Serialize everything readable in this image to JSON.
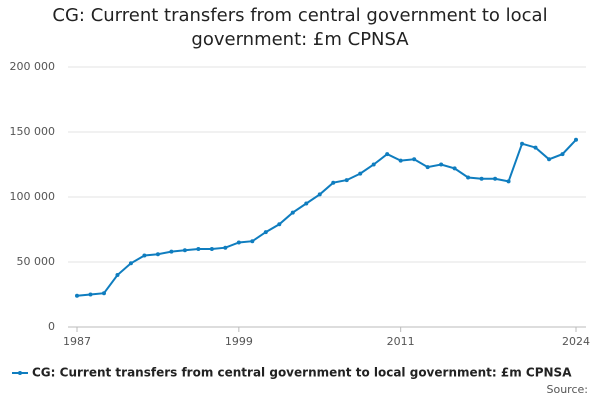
{
  "chart_data": {
    "type": "line",
    "title": "CG: Current transfers from central government to local government: £m CPNSA",
    "x": [
      1987,
      1988,
      1989,
      1990,
      1991,
      1992,
      1993,
      1994,
      1995,
      1996,
      1997,
      1998,
      1999,
      2000,
      2001,
      2002,
      2003,
      2004,
      2005,
      2006,
      2007,
      2008,
      2009,
      2010,
      2011,
      2012,
      2013,
      2014,
      2015,
      2016,
      2017,
      2018,
      2019,
      2020,
      2021,
      2022,
      2023,
      2024
    ],
    "series": [
      {
        "name": "CG: Current transfers from central government to local government: £m CPNSA",
        "color": "#0f7dbf",
        "values": [
          24000,
          25000,
          26000,
          40000,
          49000,
          55000,
          56000,
          58000,
          59000,
          60000,
          60000,
          61000,
          65000,
          66000,
          73000,
          79000,
          88000,
          95000,
          102000,
          111000,
          113000,
          118000,
          125000,
          133000,
          128000,
          129000,
          123000,
          125000,
          122000,
          115000,
          114000,
          114000,
          112000,
          141000,
          138000,
          129000,
          133000,
          144000
        ]
      }
    ],
    "xlim": [
      1987,
      2024
    ],
    "xticks": [
      1987,
      1999,
      2011,
      2024
    ],
    "ylim": [
      0,
      200000
    ],
    "yticks": [
      0,
      {
        "value": 50000,
        "label": "50 000"
      },
      {
        "value": 100000,
        "label": "100 000"
      },
      {
        "value": 150000,
        "label": "150 000"
      },
      {
        "value": 200000,
        "label": "200 000"
      }
    ],
    "grid": true,
    "source_label": "Source:"
  }
}
